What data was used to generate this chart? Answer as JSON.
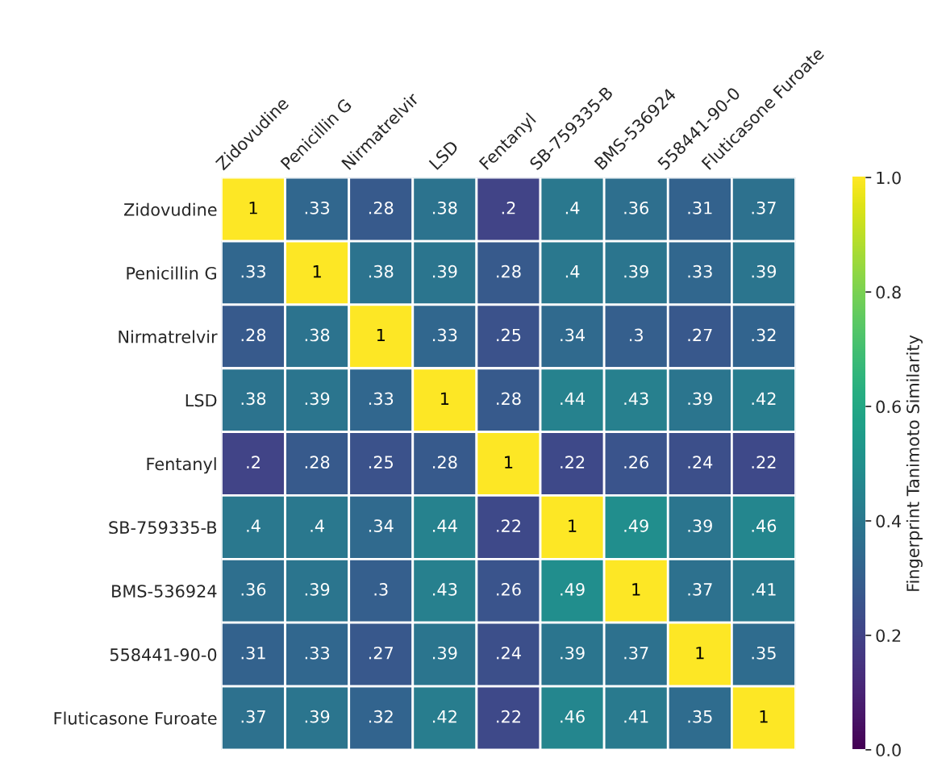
{
  "chart_data": {
    "type": "heatmap",
    "clabel": "Fingerprint Tanimoto Similarity",
    "categories": [
      "Zidovudine",
      "Penicillin G",
      "Nirmatrelvir",
      "LSD",
      "Fentanyl",
      "SB-759335-B",
      "BMS-536924",
      "558441-90-0",
      "Fluticasone Furoate"
    ],
    "y_categories": [
      "Zidovudine",
      "Penicillin G",
      "Nirmatrelvir",
      "LSD",
      "Fentanyl",
      "SB-759335-B",
      "BMS-536924",
      "558441-90-0",
      "Fluticasone Furoate"
    ],
    "cells": [
      [
        1,
        0.33,
        0.28,
        0.38,
        0.2,
        0.4,
        0.36,
        0.31,
        0.37
      ],
      [
        0.33,
        1,
        0.38,
        0.39,
        0.28,
        0.4,
        0.39,
        0.33,
        0.39
      ],
      [
        0.28,
        0.38,
        1,
        0.33,
        0.25,
        0.34,
        0.3,
        0.27,
        0.32
      ],
      [
        0.38,
        0.39,
        0.33,
        1,
        0.28,
        0.44,
        0.43,
        0.39,
        0.42
      ],
      [
        0.2,
        0.28,
        0.25,
        0.28,
        1,
        0.22,
        0.26,
        0.24,
        0.22
      ],
      [
        0.4,
        0.4,
        0.34,
        0.44,
        0.22,
        1,
        0.49,
        0.39,
        0.46
      ],
      [
        0.36,
        0.39,
        0.3,
        0.43,
        0.26,
        0.49,
        1,
        0.37,
        0.41
      ],
      [
        0.31,
        0.33,
        0.27,
        0.39,
        0.24,
        0.39,
        0.37,
        1,
        0.35
      ],
      [
        0.37,
        0.39,
        0.32,
        0.42,
        0.22,
        0.46,
        0.41,
        0.35,
        1
      ]
    ],
    "cell_labels": [
      [
        "1",
        ".33",
        ".28",
        ".38",
        ".2",
        ".4",
        ".36",
        ".31",
        ".37"
      ],
      [
        ".33",
        "1",
        ".38",
        ".39",
        ".28",
        ".4",
        ".39",
        ".33",
        ".39"
      ],
      [
        ".28",
        ".38",
        "1",
        ".33",
        ".25",
        ".34",
        ".3",
        ".27",
        ".32"
      ],
      [
        ".38",
        ".39",
        ".33",
        "1",
        ".28",
        ".44",
        ".43",
        ".39",
        ".42"
      ],
      [
        ".2",
        ".28",
        ".25",
        ".28",
        "1",
        ".22",
        ".26",
        ".24",
        ".22"
      ],
      [
        ".4",
        ".4",
        ".34",
        ".44",
        ".22",
        "1",
        ".49",
        ".39",
        ".46"
      ],
      [
        ".36",
        ".39",
        ".3",
        ".43",
        ".26",
        ".49",
        "1",
        ".37",
        ".41"
      ],
      [
        ".31",
        ".33",
        ".27",
        ".39",
        ".24",
        ".39",
        ".37",
        "1",
        ".35"
      ],
      [
        ".37",
        ".39",
        ".32",
        ".42",
        ".22",
        ".46",
        ".41",
        ".35",
        "1"
      ]
    ],
    "clim": [
      0,
      1
    ],
    "cticks": [
      {
        "value": 0,
        "label": "0.0"
      },
      {
        "value": 0.2,
        "label": "0.2"
      },
      {
        "value": 0.4,
        "label": "0.4"
      },
      {
        "value": 0.6,
        "label": "0.6"
      },
      {
        "value": 0.8,
        "label": "0.8"
      },
      {
        "value": 1,
        "label": "1.0"
      }
    ]
  }
}
